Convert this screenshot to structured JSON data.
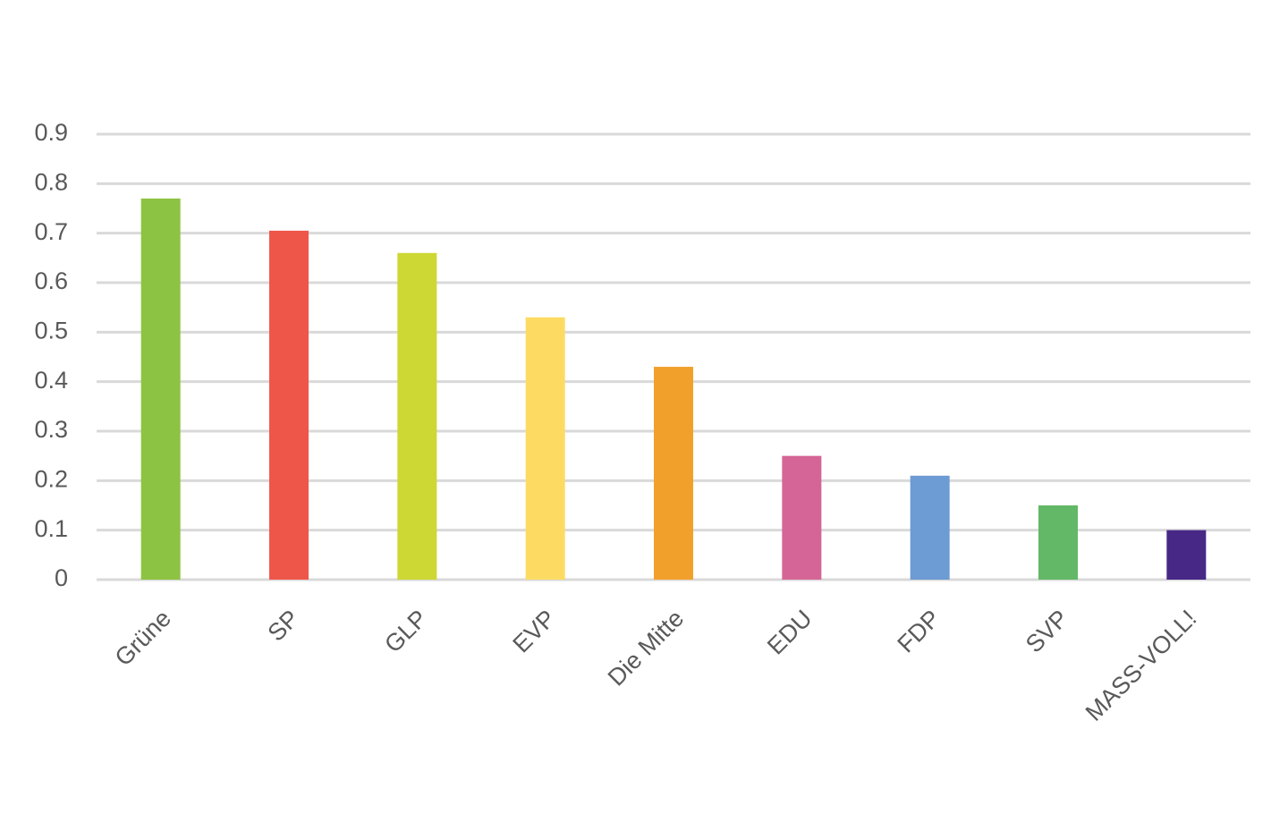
{
  "chart_data": {
    "type": "bar",
    "categories": [
      "Grüne",
      "SP",
      "GLP",
      "EVP",
      "Die Mitte",
      "EDU",
      "FDP",
      "SVP",
      "MASS-VOLL!"
    ],
    "values": [
      0.77,
      0.705,
      0.66,
      0.53,
      0.43,
      0.25,
      0.21,
      0.15,
      0.1
    ],
    "colors": [
      "#8dc342",
      "#ef564a",
      "#cdd834",
      "#fddb63",
      "#f2a02c",
      "#d56596",
      "#6d9bd3",
      "#62b866",
      "#472887"
    ],
    "ylim": [
      0,
      0.9
    ],
    "yticks": [
      0,
      0.1,
      0.2,
      0.3,
      0.4,
      0.5,
      0.6,
      0.7,
      0.8,
      0.9
    ],
    "grid": true
  }
}
